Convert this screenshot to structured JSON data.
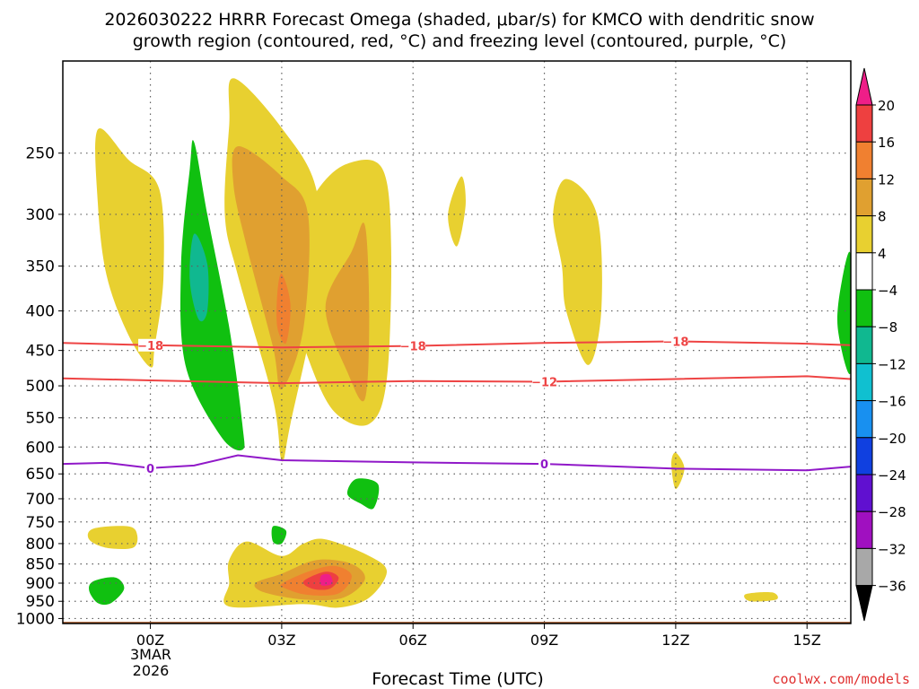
{
  "chart_data": {
    "type": "heatmap",
    "title_line1": "2026030222 HRRR Forecast Omega (shaded, μbar/s) for KMCO with dendritic snow",
    "title_line2": "growth region (contoured, red, °C) and freezing level (contoured, purple, °C)",
    "xlabel": "Forecast Time (UTC)",
    "credit": "coolwx.com/models",
    "x_range_hours": [
      -2,
      16
    ],
    "x_ticks": [
      {
        "hour": 0,
        "label": "00Z"
      },
      {
        "hour": 3,
        "label": "03Z"
      },
      {
        "hour": 6,
        "label": "06Z"
      },
      {
        "hour": 9,
        "label": "09Z"
      },
      {
        "hour": 12,
        "label": "12Z"
      },
      {
        "hour": 15,
        "label": "15Z"
      }
    ],
    "date_label": [
      "3MAR",
      "2026"
    ],
    "y_range_mb": [
      1015,
      190
    ],
    "y_ticks": [
      250,
      300,
      350,
      400,
      450,
      500,
      550,
      600,
      650,
      700,
      750,
      800,
      850,
      900,
      950,
      1000
    ],
    "y_tick_labels": [
      "250",
      "300",
      "350",
      "400",
      "450",
      "500",
      "550",
      "600",
      "650",
      "700",
      "750",
      "800",
      "850",
      "900",
      "950",
      "1000"
    ],
    "colorbar": {
      "labels": [
        "20",
        "16",
        "12",
        "8",
        "4",
        "−4",
        "−8",
        "−12",
        "−16",
        "−20",
        "−24",
        "−28",
        "−32",
        "−36"
      ],
      "colors": [
        "#ee4040",
        "#f08030",
        "#e0a030",
        "#e8d030",
        "#ffffff",
        "#10c010",
        "#10b890",
        "#10c0d0",
        "#1890f0",
        "#1040e0",
        "#6010d0",
        "#a010c0",
        "#a8a8a8"
      ],
      "top_color": "#ee1e88",
      "bottom_color": "#000000"
    },
    "contours": [
      {
        "name": "dgz-minus18",
        "color": "#ee4444",
        "label": "−18",
        "points": [
          [
            -2,
            440
          ],
          [
            0,
            443
          ],
          [
            3,
            446
          ],
          [
            6,
            444
          ],
          [
            9,
            440
          ],
          [
            12,
            438
          ],
          [
            15,
            441
          ],
          [
            16,
            443
          ]
        ],
        "label_hours": [
          0,
          6,
          12
        ]
      },
      {
        "name": "dgz-minus12",
        "color": "#ee4444",
        "label": "−12",
        "points": [
          [
            -2,
            489
          ],
          [
            0,
            492
          ],
          [
            3,
            496
          ],
          [
            6,
            493
          ],
          [
            9,
            494
          ],
          [
            12,
            490
          ],
          [
            15,
            486
          ],
          [
            16,
            490
          ]
        ],
        "label_hours": [
          9
        ]
      },
      {
        "name": "freezing-level-0",
        "color": "#9018c8",
        "label": "0",
        "points": [
          [
            -2,
            631
          ],
          [
            -1,
            629
          ],
          [
            0,
            639
          ],
          [
            1,
            634
          ],
          [
            2,
            615
          ],
          [
            3,
            624
          ],
          [
            6,
            628
          ],
          [
            9,
            631
          ],
          [
            12,
            640
          ],
          [
            15,
            643
          ],
          [
            16,
            636
          ]
        ],
        "label_hours": [
          0,
          9
        ]
      }
    ],
    "shading": [
      {
        "name": "omega-blob-1",
        "color": "#e8d030",
        "points": [
          [
            -1.2,
            233
          ],
          [
            -0.5,
            255
          ],
          [
            0.2,
            278
          ],
          [
            0.3,
            360
          ],
          [
            0.1,
            445
          ],
          [
            0,
            473
          ],
          [
            -0.5,
            430
          ],
          [
            -1.0,
            360
          ],
          [
            -1.2,
            290
          ]
        ]
      },
      {
        "name": "omega-blob-2",
        "color": "#10c010",
        "points": [
          [
            1.0,
            242
          ],
          [
            1.3,
            300
          ],
          [
            1.8,
            420
          ],
          [
            2.1,
            560
          ],
          [
            2.1,
            605
          ],
          [
            1.6,
            580
          ],
          [
            0.8,
            470
          ],
          [
            0.7,
            350
          ],
          [
            0.9,
            262
          ]
        ]
      },
      {
        "name": "omega-blob-3",
        "color": "#10b890",
        "points": [
          [
            1.0,
            318
          ],
          [
            1.3,
            348
          ],
          [
            1.3,
            400
          ],
          [
            1.1,
            410
          ],
          [
            0.9,
            365
          ]
        ]
      },
      {
        "name": "omega-blob-4",
        "color": "#e8d030",
        "points": [
          [
            1.9,
            200
          ],
          [
            3.0,
            232
          ],
          [
            3.8,
            280
          ],
          [
            3.8,
            380
          ],
          [
            3.2,
            560
          ],
          [
            3.0,
            625
          ],
          [
            2.8,
            520
          ],
          [
            2.0,
            360
          ],
          [
            1.7,
            300
          ],
          [
            1.8,
            230
          ]
        ]
      },
      {
        "name": "omega-blob-5",
        "color": "#e8d030",
        "points": [
          [
            3.2,
            330
          ],
          [
            3.8,
            280
          ],
          [
            4.5,
            258
          ],
          [
            5.3,
            262
          ],
          [
            5.5,
            330
          ],
          [
            5.4,
            490
          ],
          [
            5.0,
            560
          ],
          [
            4.2,
            540
          ],
          [
            3.6,
            460
          ],
          [
            3.2,
            380
          ]
        ]
      },
      {
        "name": "omega-blob-6",
        "color": "#e0a030",
        "points": [
          [
            2.0,
            245
          ],
          [
            3.0,
            268
          ],
          [
            3.6,
            300
          ],
          [
            3.5,
            420
          ],
          [
            3.0,
            505
          ],
          [
            2.8,
            445
          ],
          [
            2.2,
            330
          ],
          [
            1.9,
            275
          ]
        ]
      },
      {
        "name": "omega-blob-7",
        "color": "#e0a030",
        "points": [
          [
            4.0,
            395
          ],
          [
            4.6,
            335
          ],
          [
            4.9,
            310
          ],
          [
            5.0,
            405
          ],
          [
            4.9,
            520
          ],
          [
            4.5,
            480
          ]
        ]
      },
      {
        "name": "omega-blob-8",
        "color": "#f08030",
        "points": [
          [
            3.0,
            358
          ],
          [
            3.2,
            392
          ],
          [
            3.1,
            440
          ],
          [
            2.9,
            420
          ],
          [
            2.9,
            380
          ]
        ]
      },
      {
        "name": "omega-blob-9",
        "color": "#e8d030",
        "points": [
          [
            7.1,
            268
          ],
          [
            7.2,
            292
          ],
          [
            7.0,
            330
          ],
          [
            6.8,
            300
          ]
        ]
      },
      {
        "name": "omega-blob-10",
        "color": "#e8d030",
        "points": [
          [
            9.5,
            270
          ],
          [
            9.2,
            300
          ],
          [
            9.4,
            350
          ],
          [
            9.5,
            400
          ],
          [
            10.0,
            470
          ],
          [
            10.3,
            400
          ],
          [
            10.2,
            300
          ]
        ]
      },
      {
        "name": "omega-blob-11",
        "color": "#e8d030",
        "points": [
          [
            12.0,
            610
          ],
          [
            12.2,
            640
          ],
          [
            12.0,
            680
          ],
          [
            11.9,
            630
          ]
        ]
      },
      {
        "name": "omega-blob-12",
        "color": "#10c010",
        "points": [
          [
            16.0,
            340
          ],
          [
            15.8,
            365
          ],
          [
            15.7,
            420
          ],
          [
            16.0,
            480
          ]
        ]
      },
      {
        "name": "omega-blob-13",
        "color": "#10c010",
        "points": [
          [
            4.7,
            660
          ],
          [
            5.2,
            670
          ],
          [
            5.1,
            720
          ],
          [
            4.8,
            710
          ],
          [
            4.5,
            690
          ]
        ]
      },
      {
        "name": "omega-blob-14",
        "color": "#e8d030",
        "points": [
          [
            -1.3,
            765
          ],
          [
            -0.5,
            760
          ],
          [
            -0.3,
            780
          ],
          [
            -0.4,
            810
          ],
          [
            -1.0,
            810
          ],
          [
            -1.4,
            790
          ]
        ]
      },
      {
        "name": "omega-blob-15",
        "color": "#10c010",
        "points": [
          [
            -1.3,
            895
          ],
          [
            -0.8,
            885
          ],
          [
            -0.6,
            915
          ],
          [
            -0.9,
            955
          ],
          [
            -1.2,
            955
          ],
          [
            -1.4,
            920
          ]
        ]
      },
      {
        "name": "omega-blob-16",
        "color": "#10c010",
        "points": [
          [
            2.8,
            760
          ],
          [
            3.1,
            770
          ],
          [
            3.0,
            800
          ],
          [
            2.8,
            795
          ]
        ]
      },
      {
        "name": "omega-blob-17",
        "color": "#e8d030",
        "points": [
          [
            1.8,
            840
          ],
          [
            2.2,
            795
          ],
          [
            3.0,
            830
          ],
          [
            3.5,
            800
          ],
          [
            4.0,
            790
          ],
          [
            5.0,
            830
          ],
          [
            5.4,
            870
          ],
          [
            5.0,
            940
          ],
          [
            4.3,
            968
          ],
          [
            3.5,
            958
          ],
          [
            1.8,
            965
          ],
          [
            1.8,
            900
          ]
        ]
      },
      {
        "name": "omega-blob-18",
        "color": "#e0a030",
        "points": [
          [
            2.4,
            900
          ],
          [
            3.0,
            875
          ],
          [
            3.8,
            840
          ],
          [
            4.6,
            850
          ],
          [
            4.9,
            890
          ],
          [
            4.4,
            940
          ],
          [
            3.5,
            945
          ],
          [
            2.6,
            925
          ]
        ]
      },
      {
        "name": "omega-blob-19",
        "color": "#f08030",
        "points": [
          [
            3.0,
            902
          ],
          [
            3.6,
            870
          ],
          [
            4.2,
            855
          ],
          [
            4.6,
            880
          ],
          [
            4.3,
            928
          ],
          [
            3.6,
            932
          ],
          [
            3.1,
            915
          ]
        ]
      },
      {
        "name": "omega-blob-20",
        "color": "#ee4040",
        "points": [
          [
            3.5,
            895
          ],
          [
            4.0,
            870
          ],
          [
            4.3,
            885
          ],
          [
            4.1,
            915
          ],
          [
            3.7,
            915
          ]
        ]
      },
      {
        "name": "omega-blob-21",
        "color": "#ee1e88",
        "points": [
          [
            3.9,
            880
          ],
          [
            4.1,
            878
          ],
          [
            4.15,
            902
          ],
          [
            3.9,
            905
          ]
        ]
      },
      {
        "name": "omega-blob-22",
        "color": "#e8d030",
        "points": [
          [
            13.6,
            930
          ],
          [
            14.2,
            925
          ],
          [
            14.3,
            945
          ],
          [
            13.7,
            950
          ]
        ]
      }
    ],
    "terrain": {
      "color": "#a65a2a",
      "top_mb": 1010
    },
    "colors": {
      "grid": "#606060",
      "frame": "#000000",
      "axis_text": "#000000",
      "credit": "#e03030"
    }
  }
}
